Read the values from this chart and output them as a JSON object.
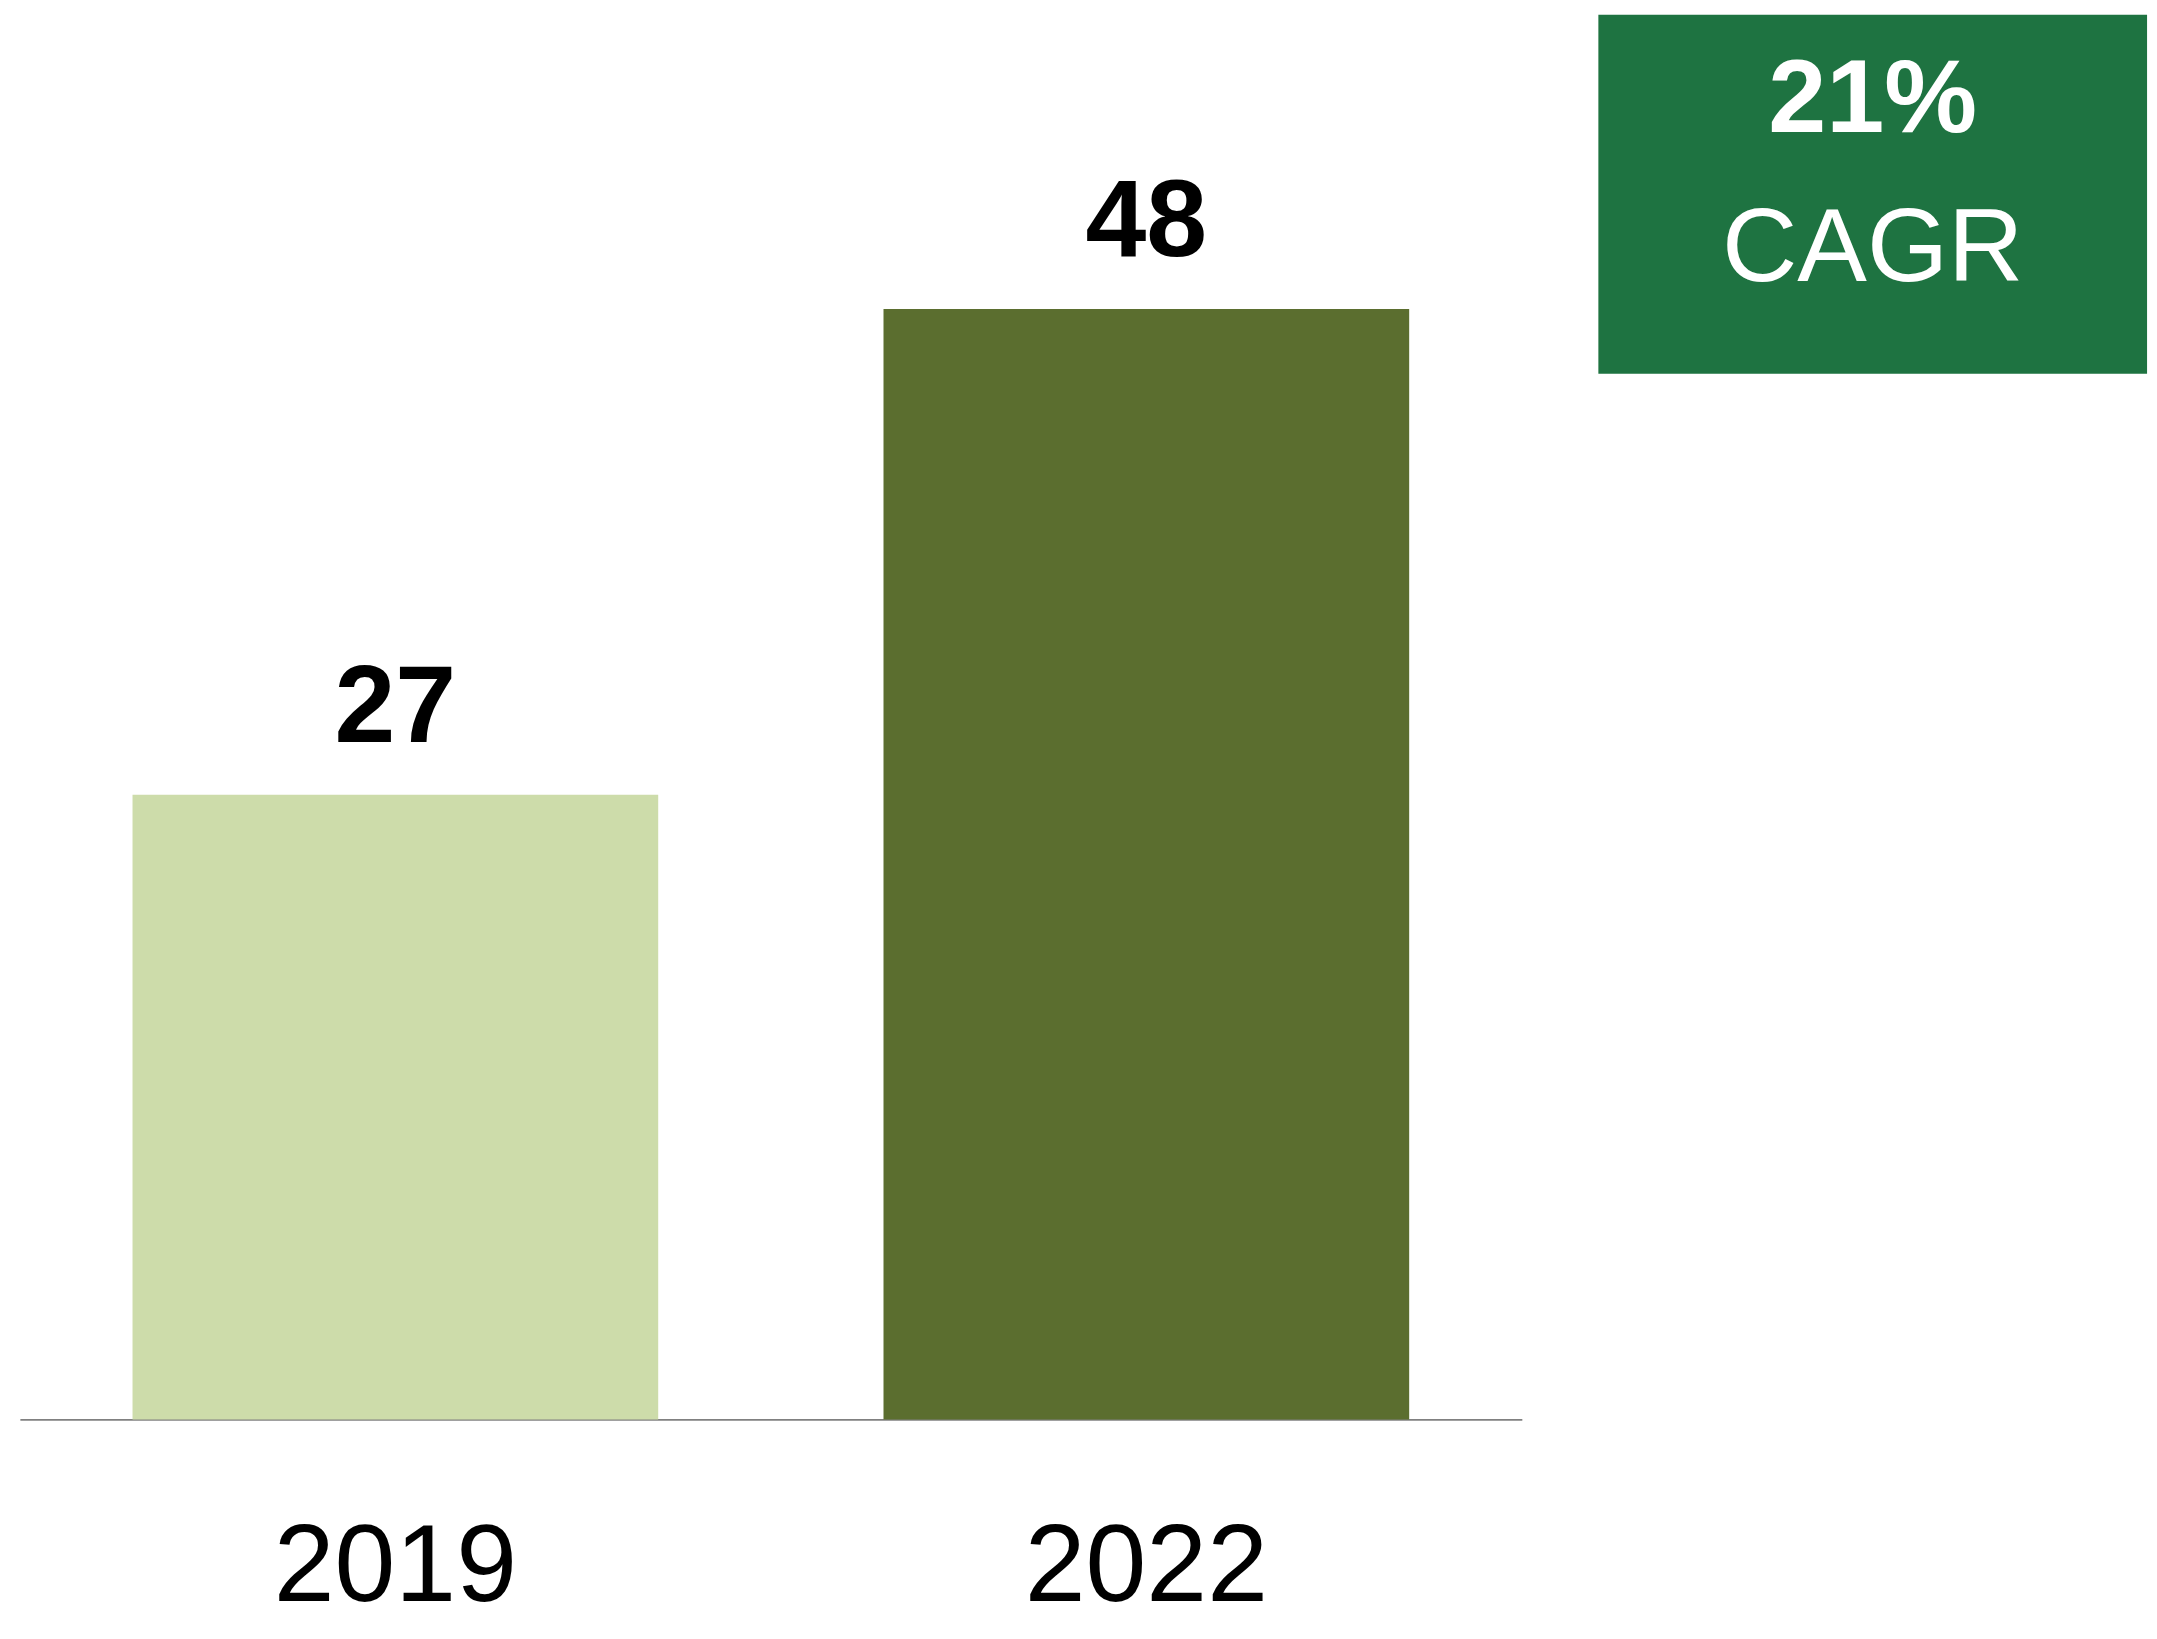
{
  "chart_data": {
    "type": "bar",
    "categories": [
      "2019",
      "2022"
    ],
    "values": [
      27,
      48
    ],
    "colors": [
      "#cddcaa",
      "#5b6e2f"
    ],
    "data_labels": true,
    "annotations": [
      "21%",
      "CAGR"
    ]
  }
}
